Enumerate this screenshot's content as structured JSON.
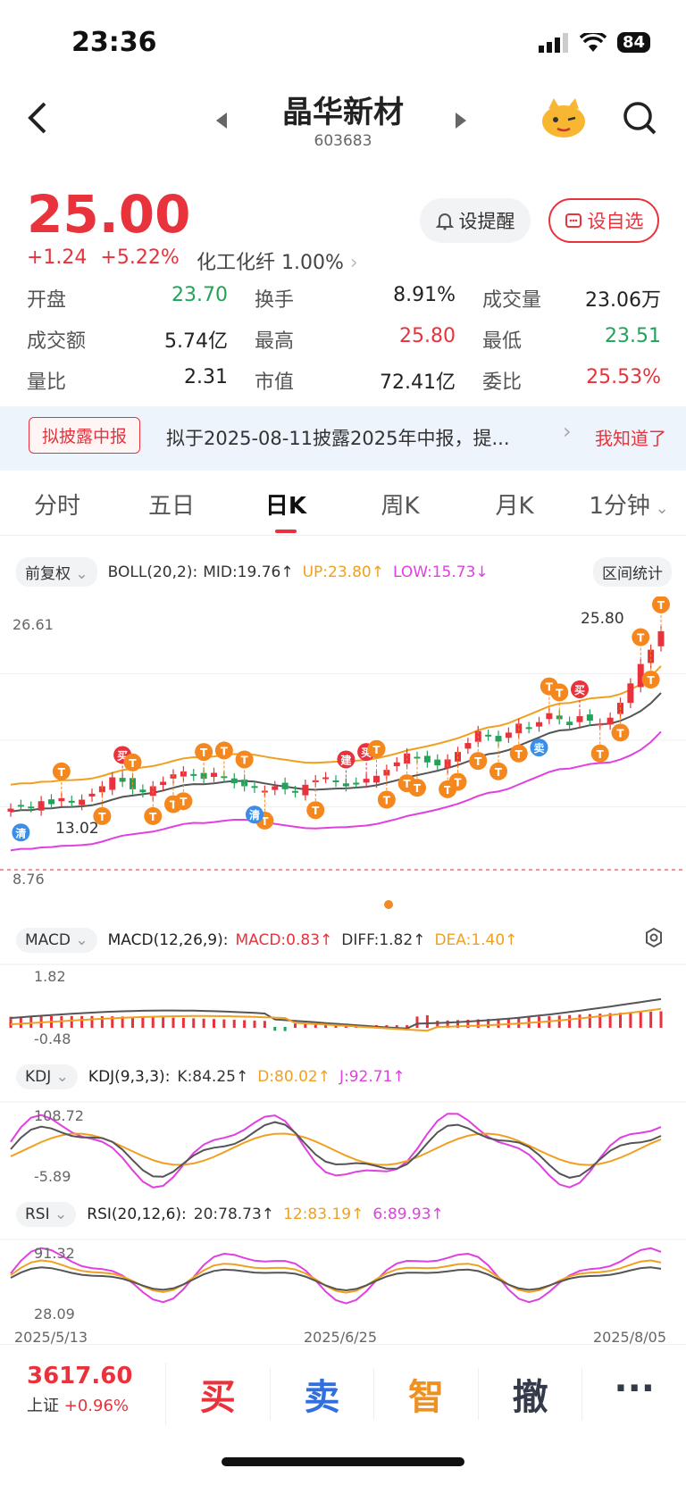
{
  "status": {
    "time": "23:36",
    "battery": "84"
  },
  "header": {
    "title": "晶华新材",
    "code": "603683"
  },
  "quote": {
    "price": "25.00",
    "change": "+1.24",
    "change_pct": "+5.22%",
    "sector": "化工化纤",
    "sector_pct": "1.00%",
    "alert_label": "设提醒",
    "watch_label": "设自选",
    "stats": [
      {
        "label": "开盘",
        "value": "23.70",
        "color": "#22a35a"
      },
      {
        "label": "换手",
        "value": "8.91%",
        "color": "#222222"
      },
      {
        "label": "成交量",
        "value": "23.06万",
        "color": "#222222"
      },
      {
        "label": "成交额",
        "value": "5.74亿",
        "color": "#222222"
      },
      {
        "label": "最高",
        "value": "25.80",
        "color": "#e8323c"
      },
      {
        "label": "最低",
        "value": "23.51",
        "color": "#22a35a"
      },
      {
        "label": "量比",
        "value": "2.31",
        "color": "#222222"
      },
      {
        "label": "市值",
        "value": "72.41亿",
        "color": "#222222"
      },
      {
        "label": "委比",
        "value": "25.53%",
        "color": "#e8323c"
      }
    ]
  },
  "banner": {
    "tag": "拟披露中报",
    "text": "拟于2025-08-11披露2025年中报，提...",
    "dismiss": "我知道了"
  },
  "tabs": [
    "分时",
    "五日",
    "日K",
    "周K",
    "月K",
    "1分钟"
  ],
  "active_tab": "日K",
  "boll": {
    "mode": "前复权",
    "name": "BOLL(20,2):",
    "mid": "MID:19.76↑",
    "up": "UP:23.80↑",
    "low": "LOW:15.73↓",
    "stats_btn": "区间统计"
  },
  "kchart": {
    "ymax": "26.61",
    "ymin": "8.76",
    "high_label": "25.80",
    "low_label": "13.02"
  },
  "macd": {
    "chip": "MACD",
    "name": "MACD(12,26,9):",
    "macd": "MACD:0.83↑",
    "diff": "DIFF:1.82↑",
    "dea": "DEA:1.40↑",
    "ymax": "1.82",
    "ymin": "-0.48"
  },
  "kdj": {
    "chip": "KDJ",
    "name": "KDJ(9,3,3):",
    "k": "K:84.25↑",
    "d": "D:80.02↑",
    "j": "J:92.71↑",
    "ymax": "108.72",
    "ymin": "-5.89"
  },
  "rsi": {
    "chip": "RSI",
    "name": "RSI(20,12,6):",
    "r1": "20:78.73↑",
    "r2": "12:83.19↑",
    "r3": "6:89.93↑",
    "ymax": "91.32",
    "ymin": "28.09"
  },
  "dates": [
    "2025/5/13",
    "2025/6/25",
    "2025/8/05"
  ],
  "index": {
    "value": "3617.60",
    "name": "上证",
    "pct": "+0.96%"
  },
  "actions": [
    {
      "label": "买",
      "color": "#e8323c"
    },
    {
      "label": "卖",
      "color": "#2f6fe0"
    },
    {
      "label": "智",
      "color": "#f09020"
    },
    {
      "label": "撤",
      "color": "#333a4a"
    },
    {
      "label": "···",
      "color": "#333a4a"
    }
  ],
  "chart_data": {
    "type": "candlestick",
    "ylim": [
      8.76,
      26.61
    ],
    "markers": [
      "T",
      "买",
      "卖",
      "建",
      "清"
    ],
    "closes": [
      13.1,
      13.3,
      13.2,
      13.6,
      13.4,
      13.8,
      13.5,
      13.7,
      14.1,
      14.6,
      15.2,
      14.9,
      14.4,
      14.2,
      14.6,
      14.9,
      15.4,
      15.6,
      15.3,
      15.1,
      15.5,
      15.2,
      14.8,
      14.6,
      14.5,
      14.3,
      14.6,
      14.4,
      14.2,
      14.7,
      15.0,
      15.2,
      14.9,
      14.6,
      14.8,
      15.1,
      15.3,
      15.7,
      16.2,
      16.8,
      16.5,
      16.2,
      16.0,
      16.4,
      16.9,
      17.5,
      18.3,
      18.0,
      17.6,
      18.2,
      18.8,
      18.5,
      18.9,
      19.5,
      19.1,
      18.7,
      19.3,
      19.0,
      18.8,
      19.2,
      20.2,
      21.5,
      22.8,
      23.76,
      25.0
    ]
  }
}
